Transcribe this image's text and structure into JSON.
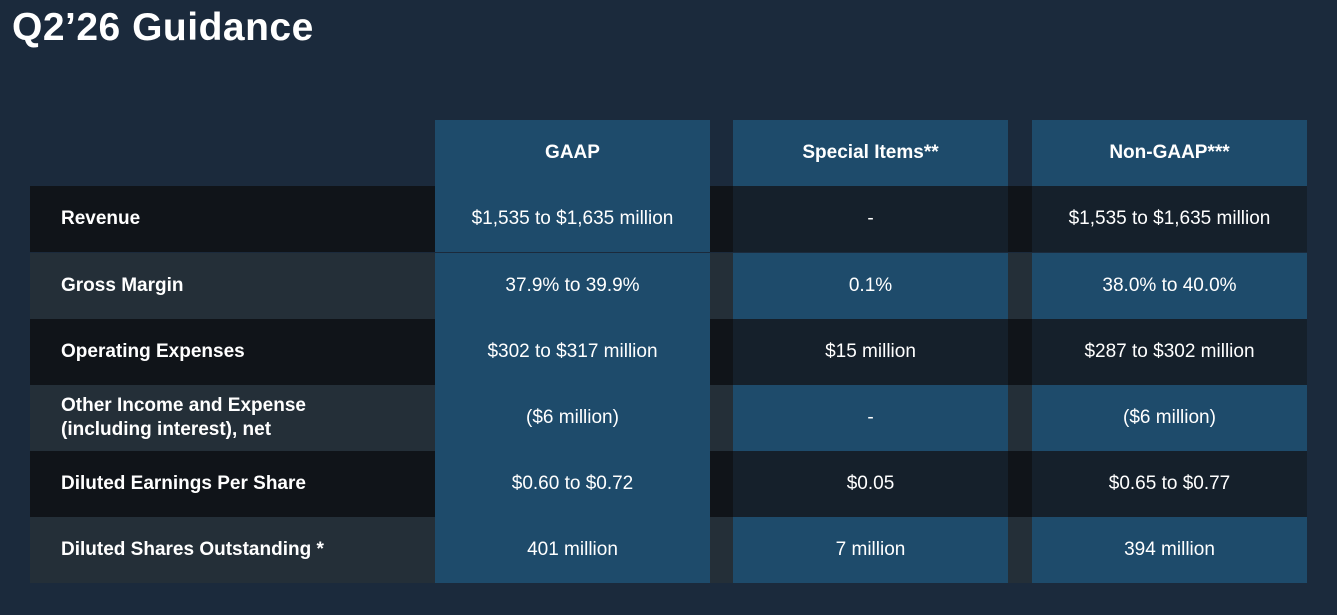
{
  "title": "Q2’26 Guidance",
  "table": {
    "headers": [
      "GAAP",
      "Special Items**",
      "Non-GAAP***"
    ],
    "rows": [
      {
        "label": "Revenue",
        "gaap": "$1,535 to $1,635 million",
        "special": "-",
        "nongaap": "$1,535 to $1,635 million"
      },
      {
        "label": "Gross Margin",
        "gaap": "37.9% to 39.9%",
        "special": "0.1%",
        "nongaap": "38.0% to 40.0%"
      },
      {
        "label": "Operating Expenses",
        "gaap": "$302 to $317 million",
        "special": "$15 million",
        "nongaap": "$287 to $302 million"
      },
      {
        "label_line1": "Other Income and Expense",
        "label_line2": "(including interest), net",
        "gaap": "($6 million)",
        "special": "-",
        "nongaap": "($6 million)"
      },
      {
        "label": "Diluted Earnings Per Share",
        "gaap": "$0.60 to $0.72",
        "special": "$0.05",
        "nongaap": "$0.65 to $0.77"
      },
      {
        "label": "Diluted Shares Outstanding *",
        "gaap": "401 million",
        "special": "7 million",
        "nongaap": "394 million"
      }
    ]
  }
}
